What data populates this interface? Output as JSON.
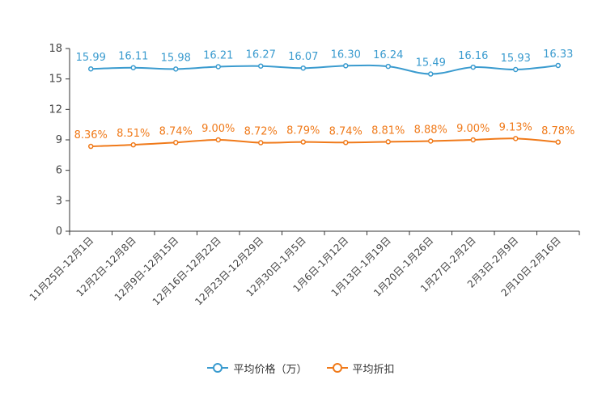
{
  "chart_data": {
    "type": "line",
    "title": "",
    "xlabel": "",
    "ylabel": "",
    "ylim": [
      0,
      18
    ],
    "yticks": [
      0,
      3,
      6,
      9,
      12,
      15,
      18
    ],
    "grid": false,
    "legend_position": "bottom",
    "categories": [
      "11月25日-12月1日",
      "12月2日-12月8日",
      "12月9日-12月15日",
      "12月16日-12月22日",
      "12月23日-12月29日",
      "12月30日-1月5日",
      "1月6日-1月12日",
      "1月13日-1月19日",
      "1月20日-1月26日",
      "1月27日-2月2日",
      "2月3日-2月9日",
      "2月10日-2月16日"
    ],
    "series": [
      {
        "name": "平均价格（万）",
        "color": "#3a9bcf",
        "values": [
          15.99,
          16.11,
          15.98,
          16.21,
          16.27,
          16.07,
          16.3,
          16.24,
          15.49,
          16.16,
          15.93,
          16.33
        ],
        "value_labels": [
          "15.99",
          "16.11",
          "15.98",
          "16.21",
          "16.27",
          "16.07",
          "16.30",
          "16.24",
          "15.49",
          "16.16",
          "15.93",
          "16.33"
        ]
      },
      {
        "name": "平均折扣",
        "color": "#f07a1a",
        "values": [
          8.36,
          8.51,
          8.74,
          9.0,
          8.72,
          8.79,
          8.74,
          8.81,
          8.88,
          9.0,
          9.13,
          8.78
        ],
        "value_labels": [
          "8.36%",
          "8.51%",
          "8.74%",
          "9.00%",
          "8.72%",
          "8.79%",
          "8.74%",
          "8.81%",
          "8.88%",
          "9.00%",
          "9.13%",
          "8.78%"
        ]
      }
    ]
  }
}
